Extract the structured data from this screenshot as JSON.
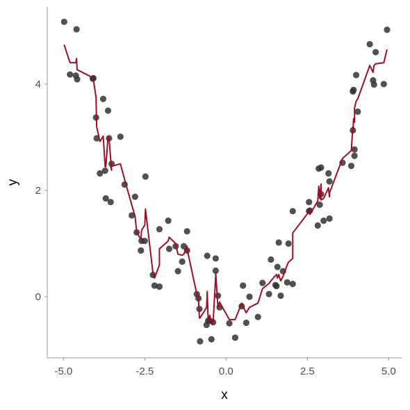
{
  "chart_data": {
    "type": "scatter",
    "title": "",
    "xlabel": "x",
    "ylabel": "y",
    "xlim": [
      -5.5,
      5.4
    ],
    "ylim": [
      -1.15,
      5.45
    ],
    "x_ticks": [
      -5.0,
      -2.5,
      0.0,
      2.5,
      5.0
    ],
    "x_tick_labels": [
      "-5.0",
      "-2.5",
      "0.0",
      "2.5",
      "5.0"
    ],
    "y_ticks": [
      0,
      2,
      4
    ],
    "y_tick_labels": [
      "0",
      "2",
      "4"
    ],
    "grid": false,
    "legend": "none",
    "colors": {
      "points": "#333333",
      "line": "#9a0f24",
      "axis": "#999999"
    },
    "series": [
      {
        "type": "scatter",
        "points": [
          [
            -4.98,
            5.17
          ],
          [
            -4.8,
            4.18
          ],
          [
            -4.62,
            4.16
          ],
          [
            -4.6,
            5.03
          ],
          [
            -4.58,
            4.09
          ],
          [
            -4.1,
            4.1
          ],
          [
            -4.08,
            4.11
          ],
          [
            -4.0,
            3.37
          ],
          [
            -3.98,
            2.98
          ],
          [
            -3.88,
            2.32
          ],
          [
            -3.78,
            3.72
          ],
          [
            -3.72,
            2.37
          ],
          [
            -3.7,
            1.85
          ],
          [
            -3.63,
            3.5
          ],
          [
            -3.6,
            2.98
          ],
          [
            -3.52,
            2.5
          ],
          [
            -3.55,
            1.78
          ],
          [
            -3.25,
            3.01
          ],
          [
            -3.12,
            2.11
          ],
          [
            -2.9,
            1.53
          ],
          [
            -2.8,
            1.88
          ],
          [
            -2.75,
            1.21
          ],
          [
            -2.62,
            0.87
          ],
          [
            -2.6,
            1.05
          ],
          [
            -2.5,
            1.05
          ],
          [
            -2.48,
            2.26
          ],
          [
            -2.25,
            0.41
          ],
          [
            -2.2,
            0.21
          ],
          [
            -2.05,
            0.19
          ],
          [
            -2.05,
            1.27
          ],
          [
            -1.78,
            1.43
          ],
          [
            -1.75,
            0.9
          ],
          [
            -1.55,
            0.95
          ],
          [
            -1.48,
            0.48
          ],
          [
            -1.35,
            0.66
          ],
          [
            -1.3,
            0.95
          ],
          [
            -1.2,
            1.23
          ],
          [
            -1.2,
            0.87
          ],
          [
            -0.9,
            0.05
          ],
          [
            -0.85,
            -0.03
          ],
          [
            -0.82,
            -0.23
          ],
          [
            -0.8,
            -0.84
          ],
          [
            -0.6,
            -0.53
          ],
          [
            -0.58,
            0.77
          ],
          [
            -0.55,
            -0.45
          ],
          [
            -0.5,
            -0.45
          ],
          [
            -0.45,
            -0.8
          ],
          [
            -0.4,
            -0.48
          ],
          [
            -0.32,
            0.72
          ],
          [
            -0.32,
            0.49
          ],
          [
            -0.25,
            0.02
          ],
          [
            -0.2,
            -0.2
          ],
          [
            0.1,
            -0.5
          ],
          [
            0.28,
            -0.77
          ],
          [
            0.48,
            -0.18
          ],
          [
            0.52,
            0.21
          ],
          [
            0.62,
            -0.49
          ],
          [
            0.72,
            0.0
          ],
          [
            0.98,
            -0.38
          ],
          [
            1.12,
            0.26
          ],
          [
            1.32,
            0.05
          ],
          [
            1.38,
            0.7
          ],
          [
            1.52,
            0.22
          ],
          [
            1.55,
            0.2
          ],
          [
            1.58,
            0.56
          ],
          [
            1.62,
            1.02
          ],
          [
            1.68,
            0.02
          ],
          [
            1.75,
            0.48
          ],
          [
            1.88,
            0.27
          ],
          [
            1.92,
            1.0
          ],
          [
            2.05,
            0.24
          ],
          [
            2.05,
            1.61
          ],
          [
            2.55,
            1.78
          ],
          [
            2.55,
            1.61
          ],
          [
            2.58,
            1.62
          ],
          [
            2.82,
            1.34
          ],
          [
            2.85,
            2.41
          ],
          [
            2.88,
            1.73
          ],
          [
            2.92,
            2.43
          ],
          [
            2.92,
            1.93
          ],
          [
            3.0,
            1.43
          ],
          [
            3.15,
            2.32
          ],
          [
            3.18,
            1.47
          ],
          [
            3.18,
            2.17
          ],
          [
            3.58,
            2.52
          ],
          [
            3.85,
            2.46
          ],
          [
            3.9,
            3.13
          ],
          [
            3.9,
            3.86
          ],
          [
            3.92,
            3.89
          ],
          [
            3.95,
            2.65
          ],
          [
            3.95,
            2.77
          ],
          [
            4.0,
            4.17
          ],
          [
            4.05,
            3.48
          ],
          [
            4.42,
            4.75
          ],
          [
            4.52,
            4.07
          ],
          [
            4.55,
            3.99
          ],
          [
            4.6,
            4.6
          ],
          [
            4.85,
            4.0
          ],
          [
            4.95,
            5.02
          ]
        ]
      },
      {
        "type": "line",
        "points": [
          [
            -4.98,
            4.74
          ],
          [
            -4.8,
            4.4
          ],
          [
            -4.62,
            4.4
          ],
          [
            -4.6,
            4.48
          ],
          [
            -4.58,
            4.27
          ],
          [
            -4.1,
            4.12
          ],
          [
            -4.08,
            4.08
          ],
          [
            -4.0,
            3.75
          ],
          [
            -3.98,
            3.2
          ],
          [
            -3.88,
            2.92
          ],
          [
            -3.78,
            3.02
          ],
          [
            -3.72,
            2.45
          ],
          [
            -3.7,
            2.44
          ],
          [
            -3.63,
            3.0
          ],
          [
            -3.6,
            2.98
          ],
          [
            -3.52,
            2.38
          ],
          [
            -3.55,
            2.45
          ],
          [
            -3.25,
            2.5
          ],
          [
            -3.12,
            2.2
          ],
          [
            -2.9,
            1.72
          ],
          [
            -2.8,
            1.52
          ],
          [
            -2.75,
            1.22
          ],
          [
            -2.62,
            1.07
          ],
          [
            -2.6,
            1.25
          ],
          [
            -2.5,
            1.35
          ],
          [
            -2.48,
            1.65
          ],
          [
            -2.25,
            0.45
          ],
          [
            -2.2,
            0.35
          ],
          [
            -2.05,
            0.6
          ],
          [
            -2.05,
            0.9
          ],
          [
            -1.78,
            1.05
          ],
          [
            -1.75,
            1.12
          ],
          [
            -1.55,
            1.0
          ],
          [
            -1.48,
            0.8
          ],
          [
            -1.35,
            0.78
          ],
          [
            -1.3,
            0.8
          ],
          [
            -1.2,
            0.95
          ],
          [
            -1.2,
            0.9
          ],
          [
            -0.9,
            0.05
          ],
          [
            -0.85,
            -0.05
          ],
          [
            -0.82,
            -0.4
          ],
          [
            -0.8,
            -0.4
          ],
          [
            -0.6,
            -0.2
          ],
          [
            -0.58,
            0.1
          ],
          [
            -0.55,
            -0.45
          ],
          [
            -0.5,
            -0.35
          ],
          [
            -0.45,
            -0.5
          ],
          [
            -0.4,
            -0.5
          ],
          [
            -0.32,
            0.4
          ],
          [
            -0.32,
            0.45
          ],
          [
            -0.25,
            -0.2
          ],
          [
            -0.2,
            -0.1
          ],
          [
            0.1,
            -0.43
          ],
          [
            0.28,
            -0.43
          ],
          [
            0.48,
            -0.12
          ],
          [
            0.52,
            -0.18
          ],
          [
            0.62,
            -0.3
          ],
          [
            0.72,
            -0.2
          ],
          [
            0.98,
            -0.12
          ],
          [
            1.12,
            0.15
          ],
          [
            1.32,
            0.25
          ],
          [
            1.38,
            0.3
          ],
          [
            1.52,
            0.4
          ],
          [
            1.55,
            0.42
          ],
          [
            1.58,
            0.35
          ],
          [
            1.62,
            0.42
          ],
          [
            1.68,
            0.3
          ],
          [
            1.75,
            0.38
          ],
          [
            1.88,
            0.6
          ],
          [
            1.92,
            0.65
          ],
          [
            2.05,
            0.72
          ],
          [
            2.05,
            1.2
          ],
          [
            2.55,
            1.6
          ],
          [
            2.55,
            1.65
          ],
          [
            2.58,
            1.55
          ],
          [
            2.82,
            1.8
          ],
          [
            2.85,
            2.08
          ],
          [
            2.88,
            1.85
          ],
          [
            2.92,
            2.12
          ],
          [
            2.92,
            1.82
          ],
          [
            3.0,
            1.85
          ],
          [
            3.15,
            2.05
          ],
          [
            3.18,
            1.88
          ],
          [
            3.18,
            1.95
          ],
          [
            3.58,
            2.6
          ],
          [
            3.85,
            2.75
          ],
          [
            3.9,
            3.2
          ],
          [
            3.9,
            3.1
          ],
          [
            3.92,
            3.35
          ],
          [
            3.95,
            3.28
          ],
          [
            3.95,
            3.55
          ],
          [
            4.0,
            3.68
          ],
          [
            4.05,
            3.72
          ],
          [
            4.42,
            4.35
          ],
          [
            4.52,
            4.22
          ],
          [
            4.55,
            4.35
          ],
          [
            4.6,
            4.38
          ],
          [
            4.85,
            4.4
          ],
          [
            4.95,
            4.65
          ]
        ]
      }
    ]
  }
}
